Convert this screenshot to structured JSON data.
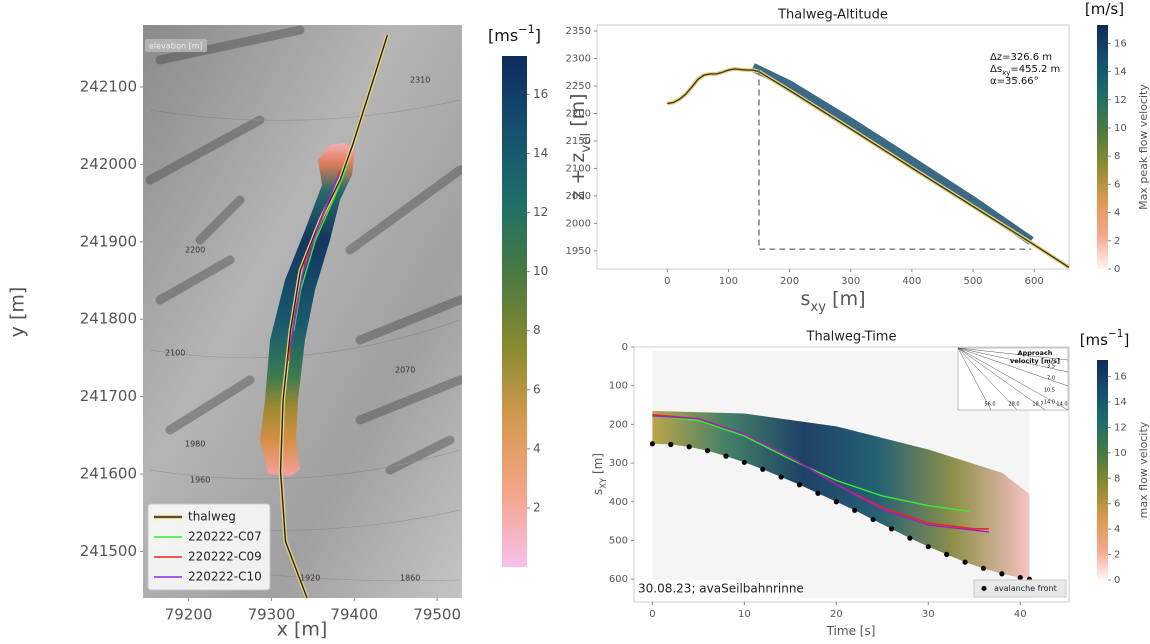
{
  "chart_data": [
    {
      "type": "line",
      "xlabel": "x [m]",
      "ylabel": "y [m]",
      "xlim": [
        79145,
        79530
      ],
      "ylim": [
        241440,
        242180
      ],
      "xticks": [
        79200,
        79300,
        79400,
        79500
      ],
      "yticks": [
        241500,
        241600,
        241700,
        241800,
        241900,
        242000,
        242100
      ],
      "legend": "lower left",
      "series": [
        {
          "name": "thalweg",
          "color": "#222222",
          "outline": "#e8d27a",
          "x": [
            79440,
            79419,
            79398,
            79383,
            79359,
            79335,
            79323,
            79314,
            79311,
            79317,
            79343
          ],
          "values": [
            242167,
            242096,
            242025,
            241980,
            241928,
            241863,
            241785,
            241695,
            241604,
            241513,
            241440
          ]
        },
        {
          "name": "220222-C07",
          "color": "#33ee33",
          "x": [
            79392,
            79377,
            79353,
            79335,
            79327
          ],
          "values": [
            241999,
            241960,
            241902,
            241837,
            241785
          ]
        },
        {
          "name": "220222-C09",
          "color": "#ee2222",
          "x": [
            79383,
            79365,
            79341,
            79329,
            79320
          ],
          "values": [
            241992,
            241941,
            241876,
            241811,
            241746
          ]
        },
        {
          "name": "220222-C10",
          "color": "#8a2be2",
          "x": [
            79381,
            79359,
            79337,
            79328,
            79323
          ],
          "values": [
            241986,
            241928,
            241856,
            241798,
            241766
          ]
        }
      ],
      "annotations": [
        "elevation [m]",
        "2100",
        "2070",
        "1980",
        "1960",
        "1920",
        "1860",
        "2310",
        "2200"
      ],
      "colorbar": {
        "title": [
          {
            "t": "[ms"
          },
          {
            "sup": "−1"
          },
          {
            "t": "]"
          }
        ],
        "lim": [
          0,
          17.3
        ],
        "ticks": [
          2,
          4,
          6,
          8,
          10,
          12,
          14,
          16
        ],
        "low_color": "#f8c0ee"
      }
    },
    {
      "type": "line",
      "title": "Thalweg-Altitude",
      "xlabel": [
        {
          "t": "s"
        },
        {
          "sub": "xy"
        },
        {
          "t": " [m]"
        }
      ],
      "ylabel": [
        {
          "t": "z + z"
        },
        {
          "sub": "vel"
        },
        {
          "t": " [m]"
        }
      ],
      "xlim": [
        -115,
        657
      ],
      "ylim": [
        1917,
        2361
      ],
      "xticks": [
        0,
        100,
        200,
        300,
        400,
        500,
        600
      ],
      "yticks": [
        1950,
        2000,
        2050,
        2100,
        2150,
        2200,
        2250,
        2300,
        2350
      ],
      "series": [
        {
          "color": "#1a4f6e",
          "width": 9,
          "x": [
            140,
            200,
            300,
            400,
            500,
            595
          ],
          "values": [
            2284,
            2252,
            2184,
            2113,
            2041,
            1968
          ]
        },
        {
          "color": "#3a3a2a",
          "outline": "#e8d27a",
          "x": [
            0,
            10,
            20,
            30,
            40,
            50,
            60,
            70,
            80,
            90,
            100,
            110,
            120,
            130,
            140,
            150,
            200,
            300,
            400,
            500,
            600,
            657
          ],
          "values": [
            2218,
            2220,
            2226,
            2235,
            2248,
            2262,
            2270,
            2272,
            2272,
            2275,
            2279,
            2281,
            2280,
            2279,
            2279,
            2276,
            2242,
            2172,
            2101,
            2031,
            1961,
            1920
          ]
        },
        {
          "color": "#777777",
          "dash": true,
          "x": [
            150,
            150,
            595
          ],
          "values": [
            2280,
            1953,
            1953
          ]
        }
      ],
      "annotations": [
        [
          {
            "t": "Δz=326.6 m"
          }
        ],
        [
          {
            "t": "Δs"
          },
          {
            "sub": "xy"
          },
          {
            "t": "=455.2 m"
          }
        ],
        [
          {
            "t": "α=35.66°"
          }
        ]
      ],
      "colorbar": {
        "title": [
          {
            "t": "[m/s]"
          }
        ],
        "label": "Max peak flow velocity",
        "lim": [
          0,
          17.3
        ],
        "ticks": [
          0,
          2,
          4,
          6,
          8,
          10,
          12,
          14,
          16
        ],
        "low_color": "#fff5f5"
      }
    },
    {
      "type": "line",
      "title": "Thalweg-Time",
      "xlabel": [
        {
          "t": "Time [s]"
        }
      ],
      "ylabel": [
        {
          "t": "s"
        },
        {
          "sub": "XY"
        },
        {
          "t": " [m]"
        }
      ],
      "xlim": [
        -2,
        45.3
      ],
      "ylim": [
        0,
        659
      ],
      "y_inverted": true,
      "xticks": [
        0,
        10,
        20,
        30,
        40
      ],
      "yticks": [
        0,
        100,
        200,
        300,
        400,
        500,
        600
      ],
      "legend": "lower right",
      "series": [
        {
          "name": "avalanche front",
          "color": "#000000",
          "marker": "dot",
          "x": [
            0,
            2,
            4,
            6,
            8,
            10,
            12,
            14,
            16,
            18,
            20,
            22,
            24,
            26,
            28,
            30,
            32,
            34,
            36,
            38,
            40,
            41
          ],
          "values": [
            250,
            252,
            258,
            268,
            282,
            298,
            316,
            336,
            356,
            378,
            400,
            422,
            446,
            470,
            494,
            516,
            536,
            556,
            572,
            586,
            596,
            600
          ]
        },
        {
          "color": "#33ee33",
          "x": [
            0,
            5,
            10,
            15,
            20,
            25,
            30,
            34.5
          ],
          "values": [
            178,
            190,
            230,
            290,
            345,
            385,
            410,
            425
          ]
        },
        {
          "color": "#ee2222",
          "x": [
            0,
            5,
            10,
            15,
            20,
            25,
            30,
            35,
            36.6
          ],
          "values": [
            175,
            185,
            225,
            285,
            355,
            415,
            455,
            470,
            470
          ]
        },
        {
          "color": "#a020c0",
          "x": [
            0,
            5,
            10,
            15,
            20,
            25,
            30,
            36.6
          ],
          "values": [
            178,
            185,
            225,
            285,
            355,
            420,
            460,
            478
          ]
        }
      ],
      "annotations": [
        "30.08.23; avaSeilbahnrinne"
      ],
      "inset": {
        "title": [
          "Approach",
          "velocity [m/s]"
        ],
        "right_labels": [
          "3.5",
          "7.0",
          "10.5",
          "14.0"
        ],
        "bottom_labels": [
          "56.0",
          "28.0",
          "18.7",
          "14.0"
        ]
      },
      "colorbar": {
        "title": [
          {
            "t": "[ms"
          },
          {
            "sup": "−1"
          },
          {
            "t": "]"
          }
        ],
        "label": "max flow velocity",
        "lim": [
          0,
          17.3
        ],
        "ticks": [
          0,
          2,
          4,
          6,
          8,
          10,
          12,
          14,
          16
        ],
        "low_color": "#fff5f5"
      }
    }
  ]
}
